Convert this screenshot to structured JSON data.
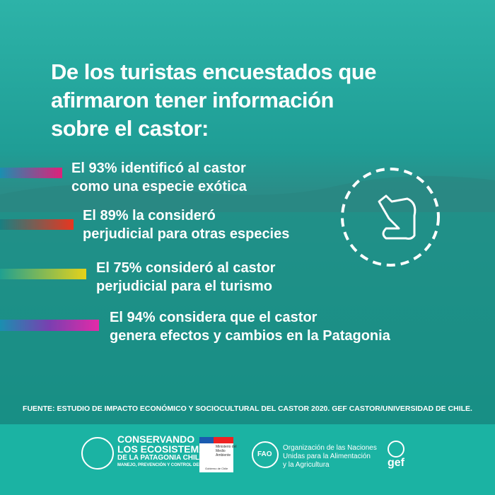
{
  "header": {
    "title": [
      "De los turistas encuestados que",
      "afirmaron tener información",
      "sobre el castor:"
    ]
  },
  "items": [
    {
      "lines": [
        "El 93% identificó al castor",
        "como una especie exótica"
      ]
    },
    {
      "lines": [
        "El 89% la consideró",
        "perjudicial para otras especies"
      ]
    },
    {
      "lines": [
        "El 75% consideró al castor",
        "perjudicial para el turismo"
      ]
    },
    {
      "lines": [
        "El 94% considera que el castor",
        "genera efectos y cambios en la Patagonia"
      ]
    }
  ],
  "source": "FUENTE: ESTUDIO DE IMPACTO ECONÓMICO Y SOCIOCULTURAL DEL CASTOR 2020. GEF CASTOR/UNIVERSIDAD DE CHILE.",
  "footer": {
    "project": [
      "CONSERVANDO",
      "LOS ECOSISTEMAS",
      "DE LA PATAGONIA CHILENA",
      "MANEJO, PREVENCIÓN Y CONTROL DEL CASTOR"
    ],
    "ministry": [
      "Ministerio del",
      "Medio",
      "Ambiente",
      "Gobierno de Chile"
    ],
    "fao": [
      "FAO",
      "Organización de las Naciones",
      "Unidas para la Alimentación",
      "y la Agricultura"
    ],
    "gef": "gef"
  }
}
